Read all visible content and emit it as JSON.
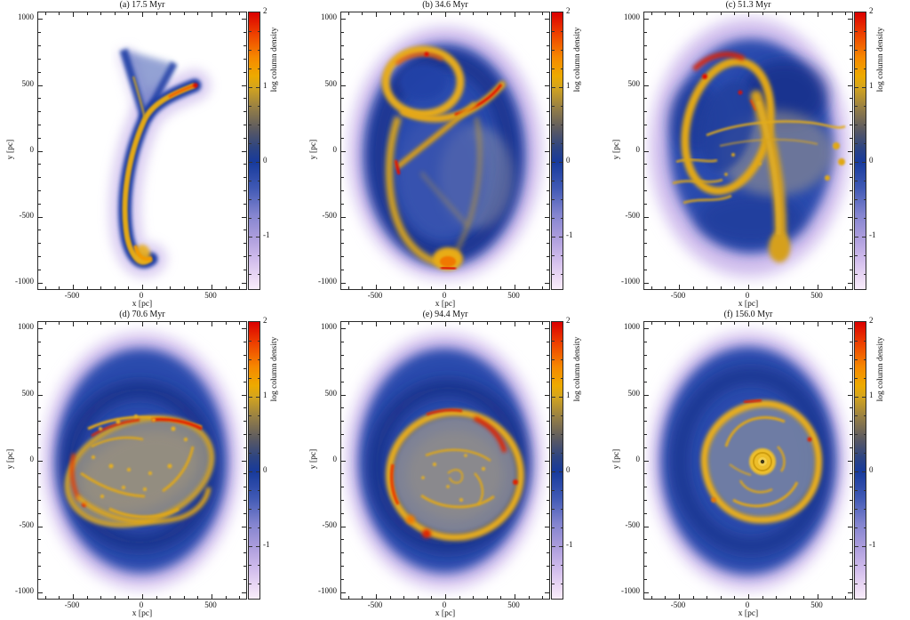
{
  "figure": {
    "background": "#ffffff",
    "kind": "simulation column-density maps, 2x3 panel grid"
  },
  "panels": [
    {
      "id": "a",
      "title": "(a) 17.5 Myr",
      "time_myr": 17.5
    },
    {
      "id": "b",
      "title": "(b) 34.6 Myr",
      "time_myr": 34.6
    },
    {
      "id": "c",
      "title": "(c) 51.3 Myr",
      "time_myr": 51.3
    },
    {
      "id": "d",
      "title": "(d) 70.6 Myr",
      "time_myr": 70.6
    },
    {
      "id": "e",
      "title": "(e) 94.4 Myr",
      "time_myr": 94.4
    },
    {
      "id": "f",
      "title": "(f) 156.0 Myr",
      "time_myr": 156.0
    }
  ],
  "axes": {
    "x_label": "x [pc]",
    "y_label": "y [pc]",
    "x_ticks": [
      -500,
      0,
      500
    ],
    "y_ticks": [
      1000,
      500,
      0,
      -500,
      -1000
    ],
    "x_range": [
      -750,
      750
    ],
    "y_range": [
      -1050,
      1050
    ],
    "minor_step": 100
  },
  "colorbar": {
    "label": "log column density",
    "ticks": [
      2,
      1,
      0,
      -1
    ],
    "range": [
      -1.7,
      2
    ],
    "stops": [
      [
        2,
        "#db0000"
      ],
      [
        1.7,
        "#ee4400"
      ],
      [
        1.4,
        "#f68800"
      ],
      [
        1.15,
        "#edaa00"
      ],
      [
        1,
        "#d4a51e"
      ],
      [
        0.7,
        "#917c48"
      ],
      [
        0.45,
        "#5d5b60"
      ],
      [
        0.2,
        "#2f4581"
      ],
      [
        0,
        "#173a9c"
      ],
      [
        -0.35,
        "#4059b4"
      ],
      [
        -0.7,
        "#8384cf"
      ],
      [
        -1,
        "#ab9cdc"
      ],
      [
        -1.3,
        "#d0bcec"
      ],
      [
        -1.55,
        "#ecdaf5"
      ],
      [
        -1.7,
        "#f8edfb"
      ]
    ]
  },
  "palette": {
    "dense_gas_gold": "#e2a816",
    "shock_red": "#e01000",
    "diffuse_blue": "#1e3da4",
    "halo_lavender": "#d2c2ee",
    "frame": "#2a2a2a"
  },
  "chart_data": [
    {
      "type": "heatmap",
      "title": "(a) 17.5 Myr",
      "time_myr": 17.5,
      "xlabel": "x [pc]",
      "ylabel": "y [pc]",
      "xlim": [
        -750,
        750
      ],
      "ylim": [
        -1050,
        1050
      ],
      "x_ticks": [
        -500,
        0,
        500
      ],
      "y_ticks": [
        -1000,
        -500,
        0,
        500,
        1000
      ],
      "colorbar": {
        "label": "log column density",
        "ticks": [
          2,
          1,
          0,
          -1
        ],
        "range": [
          -1.7,
          2
        ]
      },
      "description": "Narrow dense gas stream (log N ~ 1-2) forming an elongated hook from (-100,-900) up to a red-tipped peak near (350,530), with a V-shaped blue branch near (0,600); white empty background elsewhere."
    },
    {
      "type": "heatmap",
      "title": "(b) 34.6 Myr",
      "time_myr": 34.6,
      "xlabel": "x [pc]",
      "ylabel": "y [pc]",
      "xlim": [
        -750,
        750
      ],
      "ylim": [
        -1050,
        1050
      ],
      "x_ticks": [
        -500,
        0,
        500
      ],
      "y_ticks": [
        -1000,
        -500,
        0,
        500,
        1000
      ],
      "colorbar": {
        "label": "log column density",
        "ticks": [
          2,
          1,
          0,
          -1
        ],
        "range": [
          -1.7,
          2
        ]
      },
      "description": "Diffuse lavender halo around a blue envelope; figure-eight of gold filaments: compact loop near (-150,550), bright crescent with red tip reaching (550,530), and a large loop descending to a dense clump at (0,-850)."
    },
    {
      "type": "heatmap",
      "title": "(c) 51.3 Myr",
      "time_myr": 51.3,
      "xlabel": "x [pc]",
      "ylabel": "y [pc]",
      "xlim": [
        -750,
        750
      ],
      "ylim": [
        -1050,
        1050
      ],
      "x_ticks": [
        -500,
        0,
        500
      ],
      "y_ticks": [
        -1000,
        -500,
        0,
        500,
        1000
      ],
      "colorbar": {
        "label": "log column density",
        "ticks": [
          2,
          1,
          0,
          -1
        ],
        "range": [
          -1.7,
          2
        ]
      },
      "description": "Tilted dense gold ring centred near (-150,250) with red knots along its top (y~700); broad gold tail sweeping down to (200,-750); fragmented filaments and grey diffuse gas across the centre; blue halo with magenta fringe."
    },
    {
      "type": "heatmap",
      "title": "(d) 70.6 Myr",
      "time_myr": 70.6,
      "xlabel": "x [pc]",
      "ylabel": "y [pc]",
      "xlim": [
        -750,
        750
      ],
      "ylim": [
        -1050,
        1050
      ],
      "x_ticks": [
        -500,
        0,
        500
      ],
      "y_ticks": [
        -1000,
        -500,
        0,
        500,
        1000
      ],
      "colorbar": {
        "label": "log column density",
        "ticks": [
          2,
          1,
          0,
          -1
        ],
        "range": [
          -1.7,
          2
        ]
      },
      "description": "Tilted clumpy disc (~650x420 pc) of gold filaments with red shocked rims on its NW and W edges and many dense knots; grey-tan interior; dark blue envelope grading to magenta fringe."
    },
    {
      "type": "heatmap",
      "title": "(e) 94.4 Myr",
      "time_myr": 94.4,
      "xlabel": "x [pc]",
      "ylabel": "y [pc]",
      "xlim": [
        -750,
        750
      ],
      "ylim": [
        -1050,
        1050
      ],
      "x_ticks": [
        -500,
        0,
        500
      ],
      "y_ticks": [
        -1000,
        -500,
        0,
        500,
        1000
      ],
      "colorbar": {
        "label": "log column density",
        "ticks": [
          2,
          1,
          0,
          -1
        ],
        "range": [
          -1.7,
          2
        ]
      },
      "description": "Nearly circular ring/disc of radius ~450 pc made of gold filaments with several red knots; faint interior spiral filaments; smooth dark blue halo with magenta fringe."
    },
    {
      "type": "heatmap",
      "title": "(f) 156.0 Myr",
      "time_myr": 156.0,
      "xlabel": "x [pc]",
      "ylabel": "y [pc]",
      "xlim": [
        -750,
        750
      ],
      "ylim": [
        -1050,
        1050
      ],
      "x_ticks": [
        -500,
        0,
        500
      ],
      "y_ticks": [
        -1000,
        -500,
        0,
        500,
        1000
      ],
      "colorbar": {
        "label": "log column density",
        "ticks": [
          2,
          1,
          0,
          -1
        ],
        "range": [
          -1.7,
          2
        ]
      },
      "description": "Fully settled ring of radius ~400 pc with internal spiral filaments and a bright compact gold nucleus at the centre; smooth featureless blue halo with magenta fringe."
    }
  ]
}
